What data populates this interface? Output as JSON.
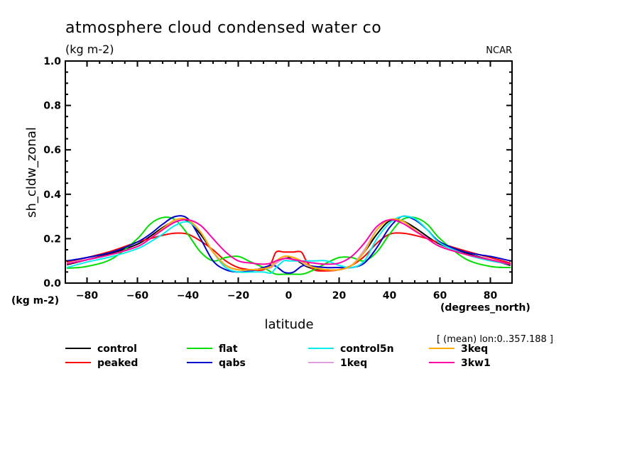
{
  "chart_data": {
    "type": "line",
    "title": "atmosphere cloud condensed water co",
    "subtitle": "(kg m-2)",
    "credit": "NCAR",
    "ylabel": "sh_cldw_zonal",
    "yunits": "(kg m-2)",
    "xlabel": "latitude",
    "xunits": "(degrees_north)",
    "annotation": "[ (mean) lon:0..357.188 ]",
    "xlim": [
      -88.6,
      88.6
    ],
    "ylim": [
      0.0,
      1.0
    ],
    "xticks": [
      -80,
      -60,
      -40,
      -20,
      0,
      20,
      40,
      60,
      80
    ],
    "xtick_labels": [
      "−80",
      "−60",
      "−40",
      "−20",
      "0",
      "20",
      "40",
      "60",
      "80"
    ],
    "yticks": [
      0.0,
      0.2,
      0.4,
      0.6,
      0.8,
      1.0
    ],
    "ytick_labels": [
      "0.0",
      "0.2",
      "0.4",
      "0.6",
      "0.8",
      "1.0"
    ],
    "grid": false,
    "legend_position": "bottom",
    "x": [
      -88,
      -80,
      -70,
      -60,
      -55,
      -50,
      -45,
      -40,
      -35,
      -30,
      -25,
      -20,
      -15,
      -10,
      -7,
      -5,
      -2,
      0,
      2,
      5,
      7,
      10,
      15,
      20,
      25,
      30,
      35,
      40,
      45,
      50,
      55,
      60,
      70,
      80,
      88
    ],
    "series": [
      {
        "name": "control",
        "color": "#000000",
        "values": [
          0.083,
          0.105,
          0.135,
          0.175,
          0.21,
          0.25,
          0.28,
          0.28,
          0.22,
          0.14,
          0.08,
          0.06,
          0.06,
          0.065,
          0.07,
          0.09,
          0.11,
          0.115,
          0.11,
          0.09,
          0.075,
          0.065,
          0.06,
          0.06,
          0.08,
          0.14,
          0.22,
          0.28,
          0.28,
          0.25,
          0.21,
          0.175,
          0.135,
          0.105,
          0.08
        ]
      },
      {
        "name": "peaked",
        "color": "#ff0000",
        "values": [
          0.095,
          0.115,
          0.145,
          0.185,
          0.2,
          0.215,
          0.225,
          0.22,
          0.19,
          0.15,
          0.1,
          0.07,
          0.06,
          0.06,
          0.09,
          0.14,
          0.14,
          0.14,
          0.14,
          0.14,
          0.1,
          0.06,
          0.055,
          0.06,
          0.08,
          0.12,
          0.18,
          0.22,
          0.225,
          0.215,
          0.2,
          0.18,
          0.145,
          0.115,
          0.09
        ]
      },
      {
        "name": "flat",
        "color": "#00dd00",
        "values": [
          0.067,
          0.075,
          0.11,
          0.2,
          0.265,
          0.295,
          0.285,
          0.22,
          0.14,
          0.1,
          0.115,
          0.12,
          0.095,
          0.07,
          0.05,
          0.04,
          0.04,
          0.04,
          0.04,
          0.04,
          0.045,
          0.06,
          0.09,
          0.115,
          0.115,
          0.1,
          0.14,
          0.22,
          0.285,
          0.295,
          0.265,
          0.2,
          0.11,
          0.075,
          0.07
        ]
      },
      {
        "name": "qabs",
        "color": "#0000cc",
        "values": [
          0.1,
          0.115,
          0.14,
          0.185,
          0.22,
          0.265,
          0.3,
          0.29,
          0.2,
          0.1,
          0.06,
          0.05,
          0.055,
          0.07,
          0.08,
          0.075,
          0.05,
          0.045,
          0.05,
          0.075,
          0.08,
          0.075,
          0.07,
          0.07,
          0.07,
          0.09,
          0.16,
          0.25,
          0.3,
          0.285,
          0.24,
          0.185,
          0.14,
          0.12,
          0.1
        ]
      },
      {
        "name": "control5n",
        "color": "#00eeee",
        "values": [
          0.07,
          0.095,
          0.12,
          0.155,
          0.185,
          0.22,
          0.26,
          0.275,
          0.23,
          0.14,
          0.07,
          0.05,
          0.05,
          0.05,
          0.045,
          0.07,
          0.1,
          0.1,
          0.1,
          0.1,
          0.1,
          0.1,
          0.1,
          0.08,
          0.07,
          0.1,
          0.2,
          0.27,
          0.3,
          0.29,
          0.24,
          0.18,
          0.13,
          0.1,
          0.085
        ]
      },
      {
        "name": "1keq",
        "color": "#dda0dd",
        "values": [
          0.087,
          0.105,
          0.13,
          0.165,
          0.2,
          0.245,
          0.28,
          0.285,
          0.23,
          0.14,
          0.08,
          0.06,
          0.06,
          0.065,
          0.07,
          0.09,
          0.11,
          0.12,
          0.11,
          0.095,
          0.08,
          0.07,
          0.06,
          0.06,
          0.08,
          0.15,
          0.24,
          0.285,
          0.28,
          0.24,
          0.2,
          0.165,
          0.13,
          0.105,
          0.085
        ]
      },
      {
        "name": "3keq",
        "color": "#ffaa00",
        "values": [
          0.087,
          0.105,
          0.13,
          0.165,
          0.2,
          0.245,
          0.285,
          0.285,
          0.23,
          0.14,
          0.08,
          0.06,
          0.06,
          0.065,
          0.075,
          0.1,
          0.12,
          0.12,
          0.115,
          0.1,
          0.085,
          0.07,
          0.06,
          0.06,
          0.08,
          0.14,
          0.24,
          0.285,
          0.28,
          0.24,
          0.2,
          0.165,
          0.13,
          0.105,
          0.085
        ]
      },
      {
        "name": "3kw1",
        "color": "#ff00aa",
        "values": [
          0.087,
          0.105,
          0.13,
          0.165,
          0.2,
          0.24,
          0.275,
          0.285,
          0.26,
          0.2,
          0.14,
          0.1,
          0.09,
          0.085,
          0.09,
          0.1,
          0.11,
          0.11,
          0.105,
          0.1,
          0.095,
          0.09,
          0.085,
          0.09,
          0.12,
          0.18,
          0.255,
          0.285,
          0.27,
          0.235,
          0.2,
          0.165,
          0.13,
          0.105,
          0.085
        ]
      }
    ]
  }
}
